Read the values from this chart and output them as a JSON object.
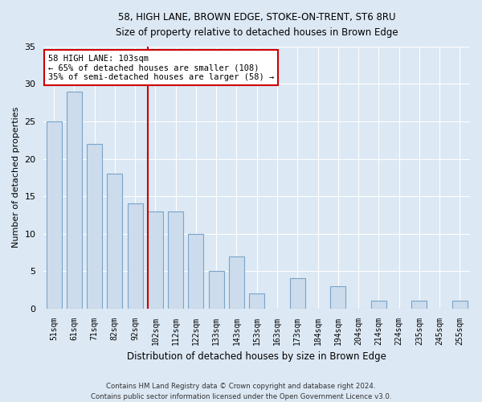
{
  "title_line1": "58, HIGH LANE, BROWN EDGE, STOKE-ON-TRENT, ST6 8RU",
  "title_line2": "Size of property relative to detached houses in Brown Edge",
  "xlabel": "Distribution of detached houses by size in Brown Edge",
  "ylabel": "Number of detached properties",
  "footer_line1": "Contains HM Land Registry data © Crown copyright and database right 2024.",
  "footer_line2": "Contains public sector information licensed under the Open Government Licence v3.0.",
  "categories": [
    "51sqm",
    "61sqm",
    "71sqm",
    "82sqm",
    "92sqm",
    "102sqm",
    "112sqm",
    "122sqm",
    "133sqm",
    "143sqm",
    "153sqm",
    "163sqm",
    "173sqm",
    "184sqm",
    "194sqm",
    "204sqm",
    "214sqm",
    "224sqm",
    "235sqm",
    "245sqm",
    "255sqm"
  ],
  "values": [
    25,
    29,
    22,
    18,
    14,
    13,
    13,
    10,
    5,
    7,
    2,
    0,
    4,
    0,
    3,
    0,
    1,
    0,
    1,
    0,
    1
  ],
  "bar_color": "#ccdcec",
  "bar_edge_color": "#7aa4c8",
  "ylim": [
    0,
    35
  ],
  "yticks": [
    0,
    5,
    10,
    15,
    20,
    25,
    30,
    35
  ],
  "vline_index": 5,
  "vline_color": "#cc0000",
  "annotation_text": "58 HIGH LANE: 103sqm\n← 65% of detached houses are smaller (108)\n35% of semi-detached houses are larger (58) →",
  "annotation_box_color": "#ffffff",
  "annotation_box_edge_color": "#cc0000",
  "bg_color": "#dce8f4",
  "plot_bg_color": "#dce8f4",
  "grid_color": "#ffffff",
  "bar_width": 0.75
}
